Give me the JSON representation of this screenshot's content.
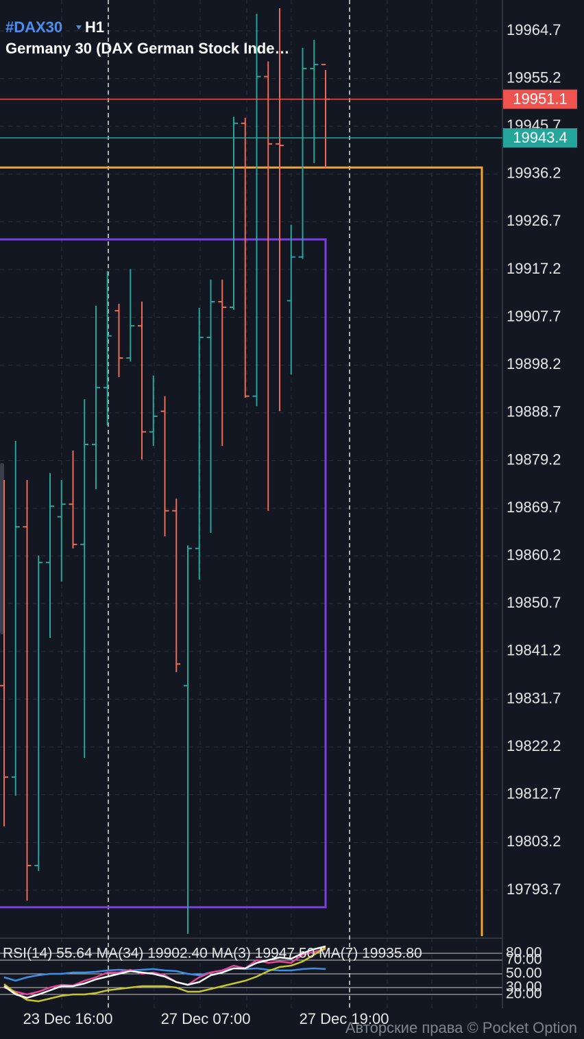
{
  "chart_data": [
    {
      "type": "ohlc",
      "symbol": "#DAX30",
      "timeframe": "H1",
      "title": "Germany 30 (DAX German Stock Inde…",
      "up_color": "#26a69a",
      "down_color": "#ef6a55",
      "open": [
        19834.4,
        19816.2,
        19866.0,
        19798.6,
        19858.9,
        19868.0,
        19870.5,
        19862.5,
        19882.4,
        19893.7,
        19909.0,
        19899.6,
        19906.0,
        19884.9,
        19889.0,
        19869.2,
        19834.4,
        19861.7,
        19903.7,
        19910.8,
        19909.7,
        19946.3,
        19892.0,
        19955.6,
        19942.2,
        19911.0,
        19919.7,
        19957.2,
        19958.0
      ],
      "high": [
        19875.3,
        19883.1,
        19875.3,
        19860.3,
        19876.7,
        19875.3,
        19881.2,
        19891.4,
        19910.0,
        19916.9,
        19910.4,
        19917.3,
        19910.8,
        19896.1,
        19892.0,
        19871.6,
        19862.3,
        19909.6,
        19915.2,
        19915.2,
        19947.6,
        19947.4,
        19968.1,
        19958.6,
        19969.2,
        19926.1,
        19961.3,
        19962.9,
        19956.9
      ],
      "low": [
        19806.4,
        19812.5,
        19791.6,
        19797.5,
        19843.9,
        19855.1,
        19861.7,
        19820.0,
        19873.5,
        19886.2,
        19895.8,
        19898.9,
        19879.4,
        19882.1,
        19864.1,
        19837.1,
        19785.0,
        19855.5,
        19864.8,
        19882.1,
        19909.2,
        19891.7,
        19890.0,
        19869.2,
        19889.0,
        19896.3,
        19919.3,
        19938.4,
        19937.4
      ],
      "close": [
        19816.2,
        19866.0,
        19798.6,
        19858.9,
        19870.1,
        19870.5,
        19862.5,
        19882.4,
        19893.7,
        19904.0,
        19899.6,
        19906.0,
        19884.9,
        19888.0,
        19869.2,
        19838.7,
        19861.7,
        19903.7,
        19910.8,
        19909.7,
        19946.3,
        19892.0,
        19955.6,
        19942.2,
        19941.9,
        19919.7,
        19957.2,
        19958.0,
        19951.1
      ],
      "ylim": [
        19784.55,
        19970.84
      ],
      "yticks": [
        19964.7,
        19955.2,
        19945.7,
        19936.2,
        19926.7,
        19917.2,
        19907.7,
        19898.2,
        19888.7,
        19879.2,
        19869.7,
        19860.2,
        19850.7,
        19841.2,
        19831.7,
        19822.2,
        19812.7,
        19803.2,
        19793.7
      ],
      "grid": true,
      "price_lines": [
        {
          "value": 19951.1,
          "color": "#ef5350"
        },
        {
          "value": 19943.4,
          "color": "#26a69a"
        }
      ],
      "shapes": [
        {
          "top": 19937.5,
          "color": "#f5a623"
        },
        {
          "top": 19923.2,
          "bottom": 19790.3,
          "color": "#7b3fe4"
        }
      ],
      "xlabels": [
        "23 Dec 16:00",
        "27 Dec 07:00",
        "27 Dec 19:00"
      ]
    },
    {
      "type": "line",
      "title": "RSI(14) 55.64 MA(34) 19902.40 MA(3) 19947.50 MA(7) 19935.80",
      "ylim": [
        0,
        100
      ],
      "yticks": [
        {
          "value": 80,
          "label": "80.00"
        },
        {
          "value": 70,
          "label": "70.00"
        },
        {
          "value": 50,
          "label": "50.00"
        },
        {
          "value": 30,
          "label": "30.00"
        },
        {
          "value": 20,
          "label": "20.00"
        }
      ],
      "series": [
        {
          "color": "#3d8ee6",
          "values": [
            45,
            40,
            45,
            48,
            50,
            50,
            52,
            52,
            53,
            55,
            56,
            55,
            56,
            57,
            55,
            54,
            50,
            48,
            52,
            55,
            58,
            57,
            58,
            56,
            55,
            55,
            57,
            58,
            57
          ]
        },
        {
          "color": "#e8459a",
          "values": [
            30,
            24,
            20,
            24,
            30,
            34,
            33,
            40,
            45,
            52,
            52,
            56,
            50,
            52,
            48,
            38,
            34,
            45,
            52,
            55,
            62,
            58,
            70,
            66,
            68,
            66,
            78,
            82,
            86
          ]
        },
        {
          "color": "#c9c62a",
          "values": [
            35,
            22,
            12,
            10,
            14,
            18,
            20,
            20,
            22,
            26,
            28,
            30,
            32,
            32,
            32,
            30,
            24,
            24,
            28,
            32,
            36,
            40,
            46,
            54,
            60,
            62,
            68,
            78,
            88
          ]
        },
        {
          "color": "#ffffff",
          "values": [
            32,
            20,
            15,
            20,
            26,
            32,
            32,
            36,
            42,
            46,
            50,
            54,
            52,
            50,
            46,
            38,
            34,
            38,
            48,
            52,
            58,
            58,
            66,
            70,
            74,
            72,
            80,
            86,
            90
          ]
        }
      ]
    }
  ],
  "watermark": "Авторские права © Pocket Option"
}
